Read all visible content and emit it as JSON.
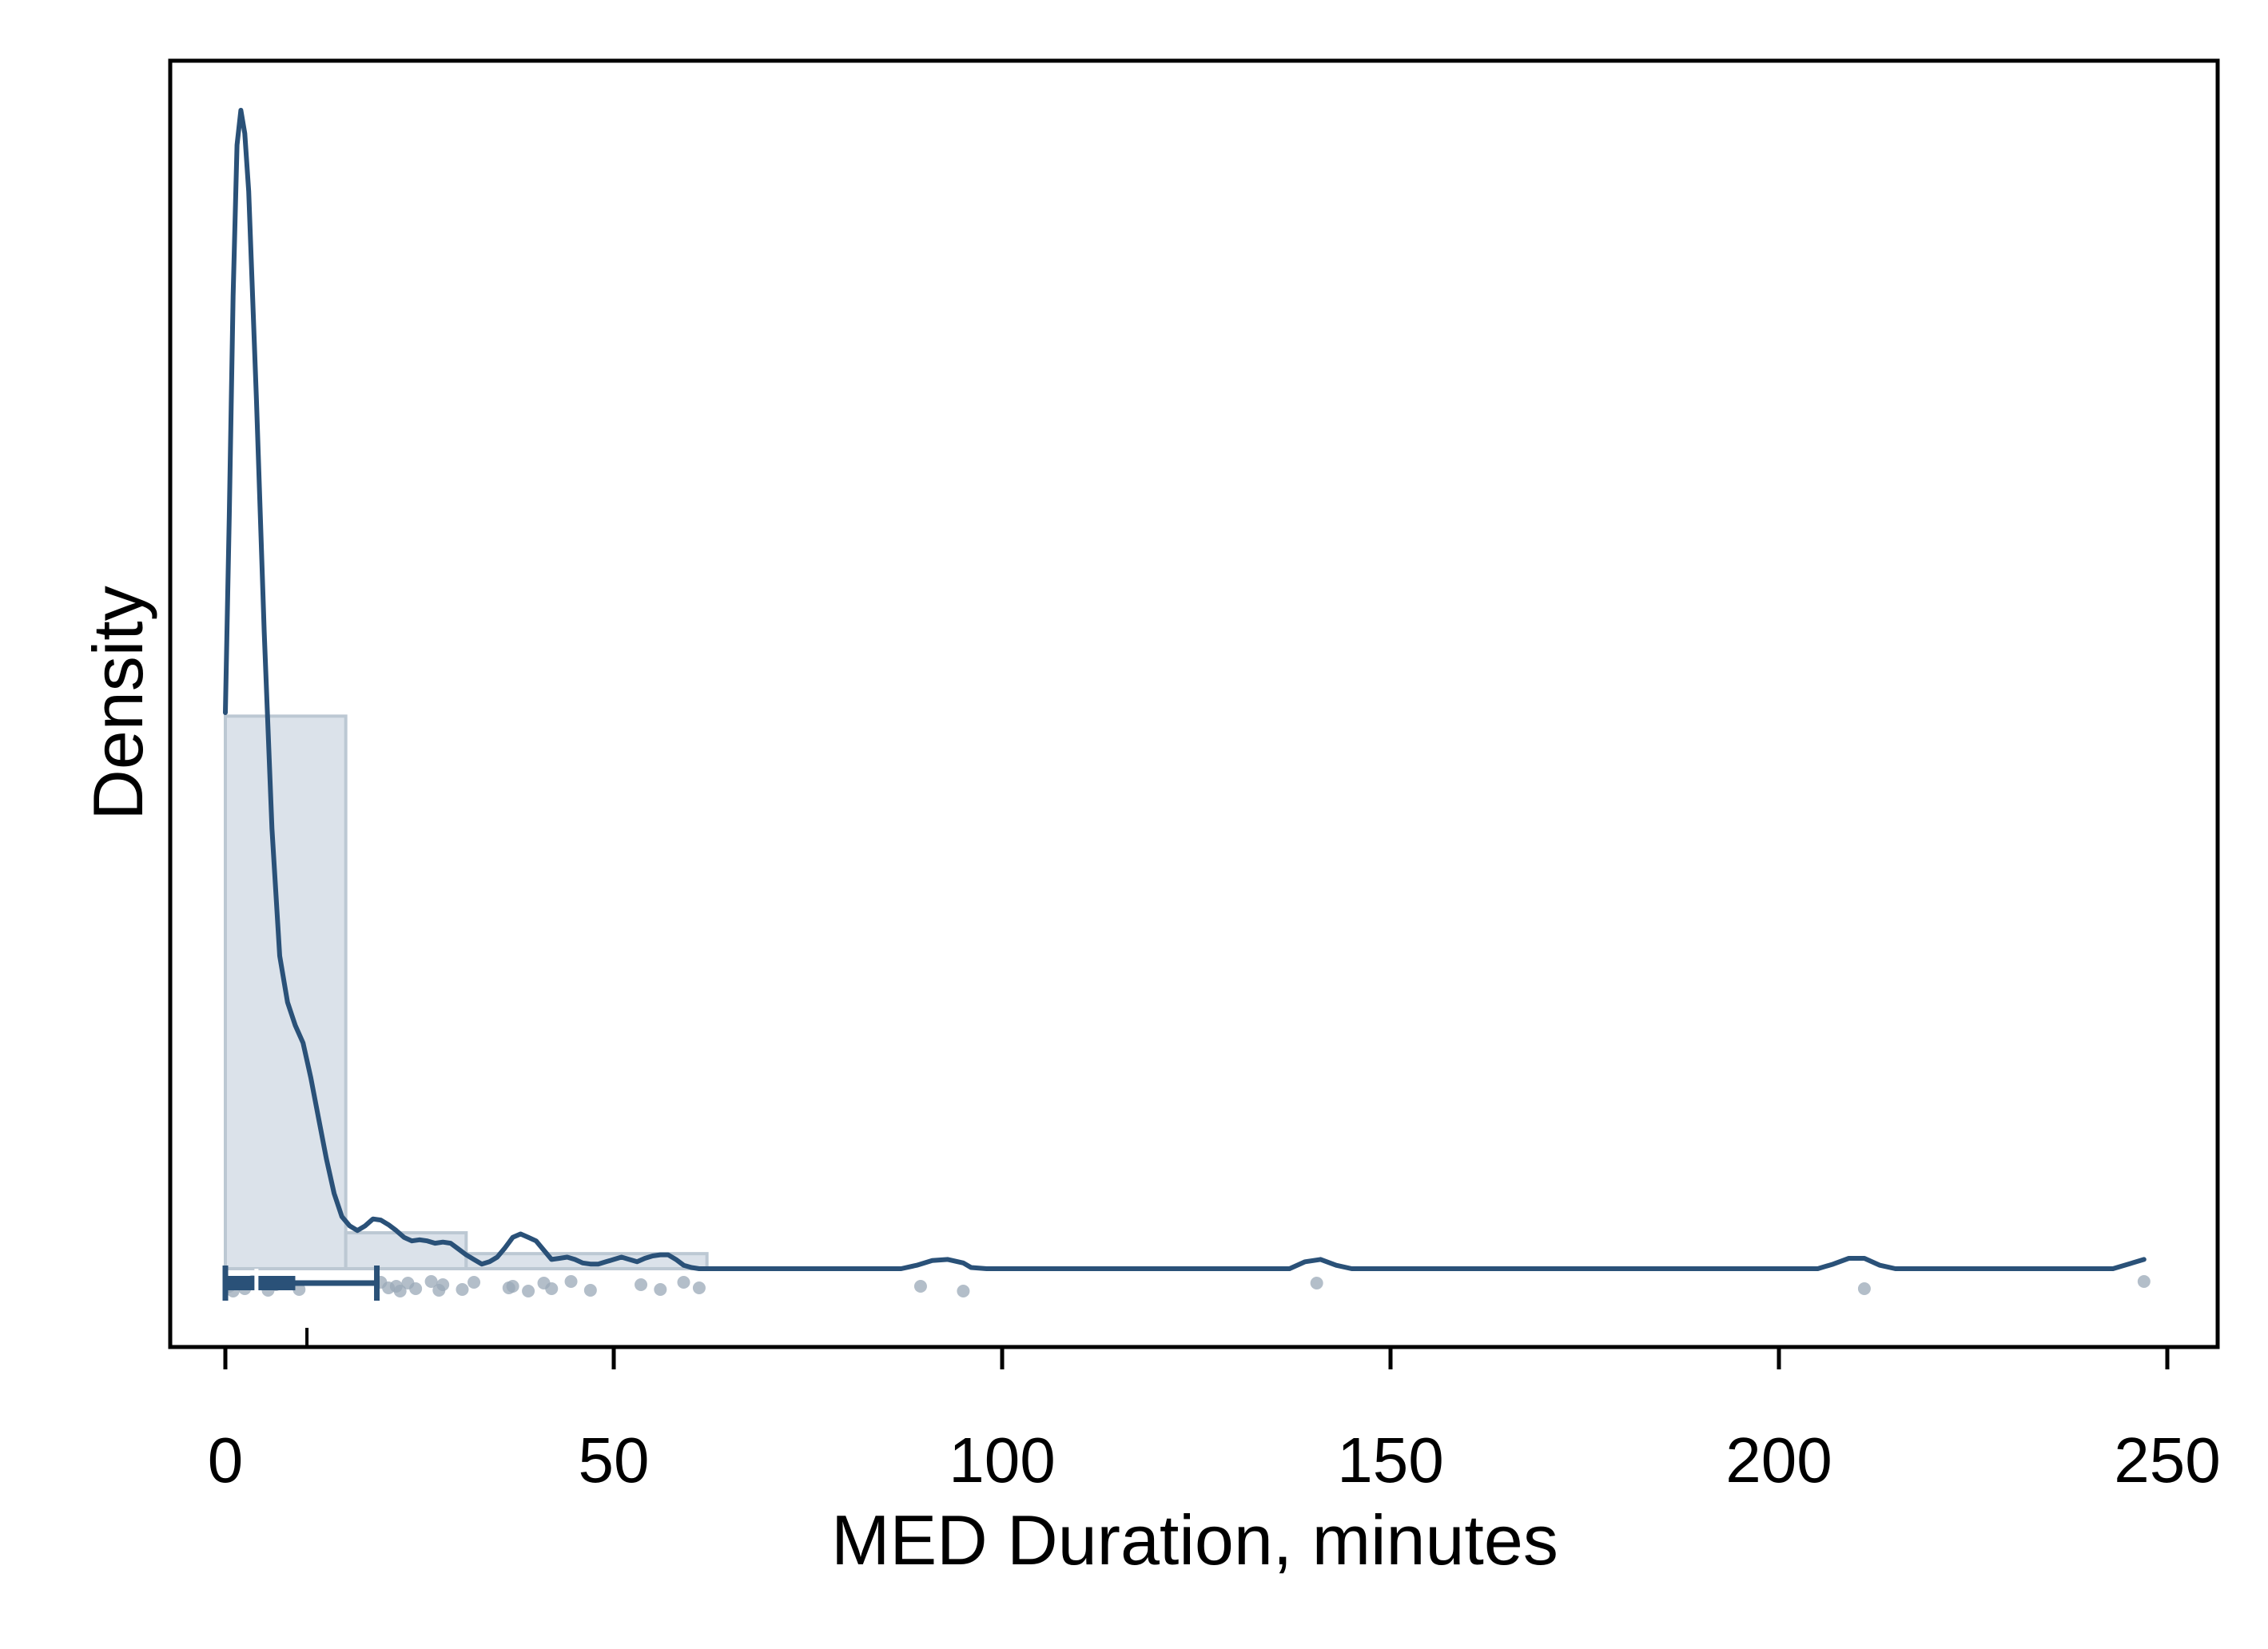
{
  "chart_data": {
    "type": "histogram-density",
    "xlabel": "MED Duration, minutes",
    "ylabel": "Density",
    "xlim": [
      -7,
      257
    ],
    "ylim": [
      0,
      1
    ],
    "x_ticks": [
      0,
      50,
      100,
      150,
      200,
      250
    ],
    "x_tick_labels": [
      "0",
      "50",
      "100",
      "150",
      "200",
      "250"
    ],
    "y_ticks_shown": false,
    "grid": false,
    "legend": "none",
    "histogram": {
      "bins": [
        {
          "x0": 0,
          "x1": 15.5,
          "density": 0.477
        },
        {
          "x0": 15.5,
          "x1": 31,
          "density": 0.031
        },
        {
          "x0": 31,
          "x1": 62,
          "density": 0.013
        }
      ]
    },
    "kde": [
      [
        0,
        0.48
      ],
      [
        0.5,
        0.65
      ],
      [
        1,
        0.84
      ],
      [
        1.5,
        0.97
      ],
      [
        2,
        1.0
      ],
      [
        2.5,
        0.98
      ],
      [
        3,
        0.93
      ],
      [
        4,
        0.75
      ],
      [
        5,
        0.55
      ],
      [
        6,
        0.38
      ],
      [
        7,
        0.27
      ],
      [
        8,
        0.23
      ],
      [
        9,
        0.21
      ],
      [
        10,
        0.195
      ],
      [
        11,
        0.165
      ],
      [
        12,
        0.13
      ],
      [
        13,
        0.095
      ],
      [
        14,
        0.065
      ],
      [
        15,
        0.045
      ],
      [
        16,
        0.037
      ],
      [
        17,
        0.033
      ],
      [
        18,
        0.037
      ],
      [
        19,
        0.043
      ],
      [
        20,
        0.042
      ],
      [
        21,
        0.038
      ],
      [
        22,
        0.033
      ],
      [
        23,
        0.027
      ],
      [
        24,
        0.024
      ],
      [
        25,
        0.025
      ],
      [
        26,
        0.024
      ],
      [
        27,
        0.022
      ],
      [
        28,
        0.023
      ],
      [
        29,
        0.022
      ],
      [
        30,
        0.017
      ],
      [
        31,
        0.012
      ],
      [
        32,
        0.008
      ],
      [
        33,
        0.004
      ],
      [
        34,
        0.006
      ],
      [
        35,
        0.01
      ],
      [
        36,
        0.018
      ],
      [
        37,
        0.027
      ],
      [
        38,
        0.03
      ],
      [
        39,
        0.027
      ],
      [
        40,
        0.024
      ],
      [
        41,
        0.016
      ],
      [
        42,
        0.008
      ],
      [
        43,
        0.009
      ],
      [
        44,
        0.01
      ],
      [
        45,
        0.008
      ],
      [
        46,
        0.005
      ],
      [
        47,
        0.004
      ],
      [
        48,
        0.004
      ],
      [
        49,
        0.006
      ],
      [
        50,
        0.008
      ],
      [
        51,
        0.01
      ],
      [
        52,
        0.008
      ],
      [
        53,
        0.006
      ],
      [
        54,
        0.009
      ],
      [
        55,
        0.011
      ],
      [
        56,
        0.012
      ],
      [
        57,
        0.012
      ],
      [
        58,
        0.008
      ],
      [
        59,
        0.003
      ],
      [
        60,
        0.001
      ],
      [
        61,
        0
      ],
      [
        62,
        0
      ],
      [
        66,
        0
      ],
      [
        78,
        0
      ],
      [
        87,
        0
      ],
      [
        89,
        0.003
      ],
      [
        91,
        0.007
      ],
      [
        93,
        0.008
      ],
      [
        95,
        0.005
      ],
      [
        96,
        0.001
      ],
      [
        98,
        0
      ],
      [
        137,
        0
      ],
      [
        139,
        0.006
      ],
      [
        141,
        0.008
      ],
      [
        143,
        0.003
      ],
      [
        145,
        0
      ],
      [
        205,
        0
      ],
      [
        207,
        0.004
      ],
      [
        209,
        0.009
      ],
      [
        211,
        0.009
      ],
      [
        213,
        0.003
      ],
      [
        215,
        0
      ],
      [
        243,
        0
      ],
      [
        245,
        0.004
      ],
      [
        247,
        0.008
      ]
    ],
    "boxplot": {
      "min": 0,
      "q1": 0,
      "median": 4,
      "mean": 10.5,
      "q3": 9,
      "max": 19.5
    },
    "points": [
      0.5,
      1,
      1.5,
      2.5,
      3.5,
      5.5,
      6.5,
      9.5,
      20,
      21,
      22,
      22.5,
      23.5,
      24.5,
      26.5,
      27.5,
      28,
      30.5,
      32,
      36.5,
      37,
      39,
      41,
      42,
      44.5,
      47,
      53.5,
      56,
      59,
      61,
      89.5,
      95,
      140.5,
      211,
      247
    ],
    "colors": {
      "line": "#2a5178",
      "hist_fill": "#dbe2ea",
      "hist_edge": "#bcc8d3",
      "points": "#9aa8b7",
      "axis": "#000000"
    }
  }
}
